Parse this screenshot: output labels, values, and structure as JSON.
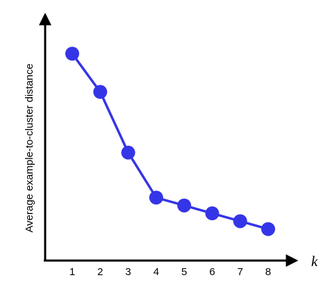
{
  "chart_data": {
    "type": "line",
    "title": "",
    "xlabel": "k",
    "ylabel": "Average example-to-cluster distance",
    "x": [
      1,
      2,
      3,
      4,
      5,
      6,
      7,
      8
    ],
    "tick_labels": [
      "1",
      "2",
      "3",
      "4",
      "5",
      "6",
      "7",
      "8"
    ],
    "series": [
      {
        "values": [
          0.92,
          0.75,
          0.48,
          0.28,
          0.245,
          0.21,
          0.175,
          0.14
        ],
        "color": "#3535e8"
      }
    ],
    "ylim": [
      0,
      1.1
    ],
    "y_tick_labels_shown": false,
    "grid": false,
    "legend": "none",
    "axis_color": "#000000"
  }
}
